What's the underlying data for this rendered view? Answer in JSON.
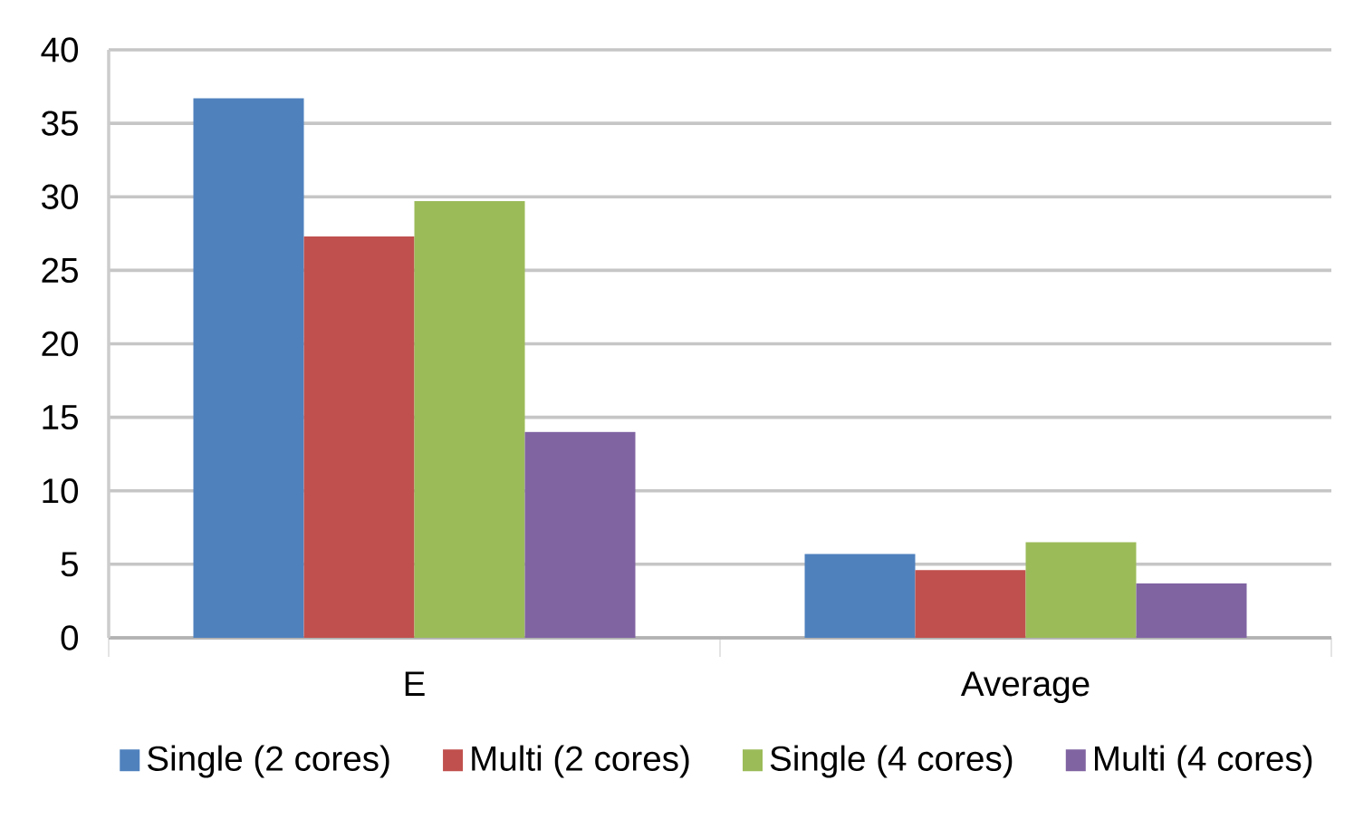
{
  "chart_data": {
    "type": "bar",
    "categories": [
      "E",
      "Average"
    ],
    "series": [
      {
        "name": "Single  (2 cores)",
        "color": "#4f81bd",
        "values": [
          36.7,
          5.7
        ]
      },
      {
        "name": "Multi (2 cores)",
        "color": "#c0504d",
        "values": [
          27.3,
          4.6
        ]
      },
      {
        "name": "Single (4 cores)",
        "color": "#9bbb59",
        "values": [
          29.7,
          6.5
        ]
      },
      {
        "name": "Multi (4 cores)",
        "color": "#8064a2",
        "values": [
          14.0,
          3.7
        ]
      }
    ],
    "ylim": [
      0,
      40
    ],
    "yticks": [
      0,
      5,
      10,
      15,
      20,
      25,
      30,
      35,
      40
    ],
    "grid": "y",
    "legend": "bottom"
  }
}
